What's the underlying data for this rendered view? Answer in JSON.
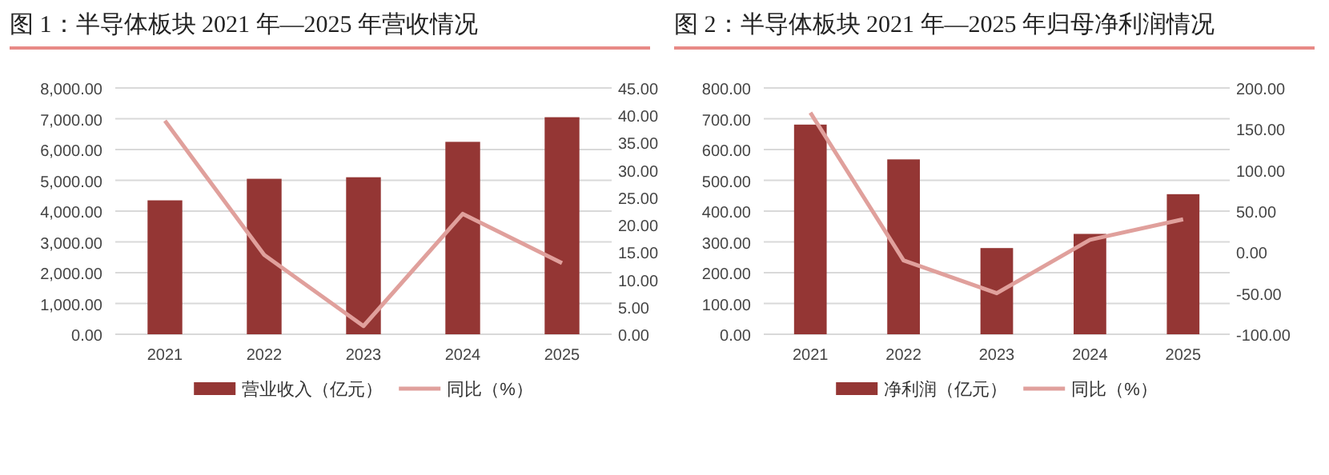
{
  "chart_data": [
    {
      "type": "bar",
      "title": "图 1：半导体板块 2021 年—2025 年营收情况",
      "categories": [
        "2021",
        "2022",
        "2023",
        "2024",
        "2025"
      ],
      "series": [
        {
          "name": "营业收入（亿元）",
          "color": "#943634",
          "values": [
            4350,
            5050,
            5100,
            6250,
            7050
          ]
        },
        {
          "name": "同比（%）",
          "type": "line",
          "axis": "y2",
          "color": "#e0a09c",
          "values": [
            39,
            14.5,
            1.5,
            22,
            13
          ]
        }
      ],
      "ylim": [
        0,
        8000
      ],
      "yticks": [
        {
          "value": 0,
          "label": "0.00"
        },
        {
          "value": 1000,
          "label": "1,000.00"
        },
        {
          "value": 2000,
          "label": "2,000.00"
        },
        {
          "value": 3000,
          "label": "3,000.00"
        },
        {
          "value": 4000,
          "label": "4,000.00"
        },
        {
          "value": 5000,
          "label": "5,000.00"
        },
        {
          "value": 6000,
          "label": "6,000.00"
        },
        {
          "value": 7000,
          "label": "7,000.00"
        },
        {
          "value": 8000,
          "label": "8,000.00"
        }
      ],
      "y2lim": [
        0,
        45
      ],
      "y2ticks": [
        {
          "value": 0,
          "label": "0.00"
        },
        {
          "value": 5,
          "label": "5.00"
        },
        {
          "value": 10,
          "label": "10.00"
        },
        {
          "value": 15,
          "label": "15.00"
        },
        {
          "value": 20,
          "label": "20.00"
        },
        {
          "value": 25,
          "label": "25.00"
        },
        {
          "value": 30,
          "label": "30.00"
        },
        {
          "value": 35,
          "label": "35.00"
        },
        {
          "value": 40,
          "label": "40.00"
        },
        {
          "value": 45,
          "label": "45.00"
        }
      ],
      "grid": "y",
      "legend": "bottom"
    },
    {
      "type": "bar",
      "title": "图 2：半导体板块 2021 年—2025 年归母净利润情况",
      "categories": [
        "2021",
        "2022",
        "2023",
        "2024",
        "2025"
      ],
      "series": [
        {
          "name": "净利润（亿元）",
          "color": "#943634",
          "values": [
            681,
            568,
            280,
            326,
            455
          ]
        },
        {
          "name": "同比（%）",
          "type": "line",
          "axis": "y2",
          "color": "#e0a09c",
          "values": [
            170,
            -10,
            -50,
            15,
            40
          ]
        }
      ],
      "ylim": [
        0,
        800
      ],
      "yticks": [
        {
          "value": 0,
          "label": "0.00"
        },
        {
          "value": 100,
          "label": "100.00"
        },
        {
          "value": 200,
          "label": "200.00"
        },
        {
          "value": 300,
          "label": "300.00"
        },
        {
          "value": 400,
          "label": "400.00"
        },
        {
          "value": 500,
          "label": "500.00"
        },
        {
          "value": 600,
          "label": "600.00"
        },
        {
          "value": 700,
          "label": "700.00"
        },
        {
          "value": 800,
          "label": "800.00"
        }
      ],
      "y2lim": [
        -100,
        200
      ],
      "y2ticks": [
        {
          "value": -100,
          "label": "-100.00"
        },
        {
          "value": -50,
          "label": "-50.00"
        },
        {
          "value": 0,
          "label": "0.00"
        },
        {
          "value": 50,
          "label": "50.00"
        },
        {
          "value": 100,
          "label": "100.00"
        },
        {
          "value": 150,
          "label": "150.00"
        },
        {
          "value": 200,
          "label": "200.00"
        }
      ],
      "grid": "y",
      "legend": "bottom"
    }
  ]
}
